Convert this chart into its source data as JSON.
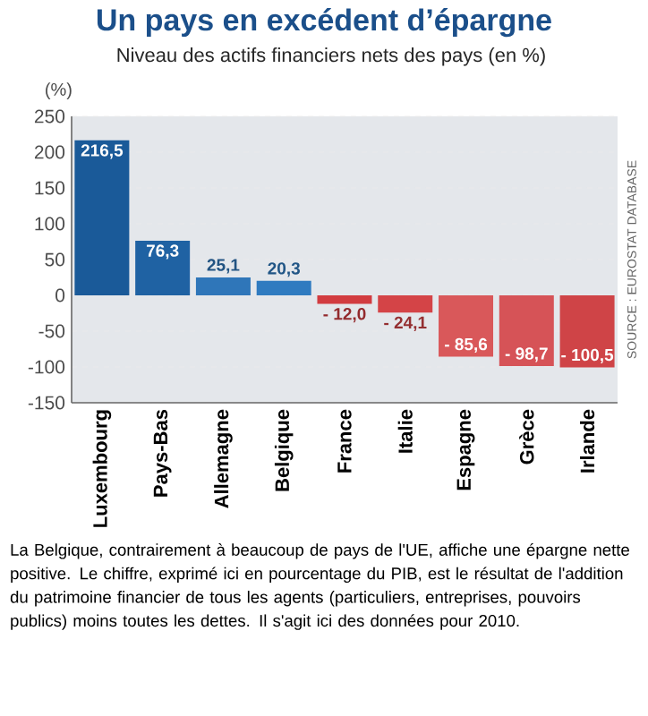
{
  "chart_data": {
    "type": "bar",
    "title": "Un pays en excédent d’épargne",
    "subtitle": "Niveau des actifs financiers nets des pays (en %)",
    "ylabel": "(%)",
    "categories": [
      "Luxembourg",
      "Pays-Bas",
      "Allemagne",
      "Belgique",
      "France",
      "Italie",
      "Espagne",
      "Grèce",
      "Irlande"
    ],
    "values": [
      216.5,
      76.3,
      25.1,
      20.3,
      -12.0,
      -24.1,
      -85.6,
      -98.7,
      -100.5
    ],
    "value_labels": [
      "216,5",
      "76,3",
      "25,1",
      "20,3",
      "- 12,0",
      "- 24,1",
      "- 85,6",
      "- 98,7",
      "- 100,5"
    ],
    "colors": [
      "#1a5a99",
      "#1f62a3",
      "#2f76b9",
      "#2f7bc0",
      "#d23c40",
      "#d44447",
      "#d9585a",
      "#d65357",
      "#cf4447"
    ],
    "ylim": [
      -150,
      250
    ],
    "yticks": [
      -150,
      -100,
      -50,
      0,
      50,
      100,
      150,
      200,
      250
    ],
    "grid": "y",
    "annotations": [
      "SOURCE : EUROSTAT DATABASE",
      "La Belgique, contrairement à beaucoup de pays de l'UE, affiche une épargne nette positive. Le chiffre, exprimé ici en pourcentage du PIB, est le résultat de l'addition du patrimoine financier de tous les agents (particuliers, entreprises, pouvoirs publics) moins toutes les dettes. Il s'agit ici des données pour 2010."
    ]
  }
}
